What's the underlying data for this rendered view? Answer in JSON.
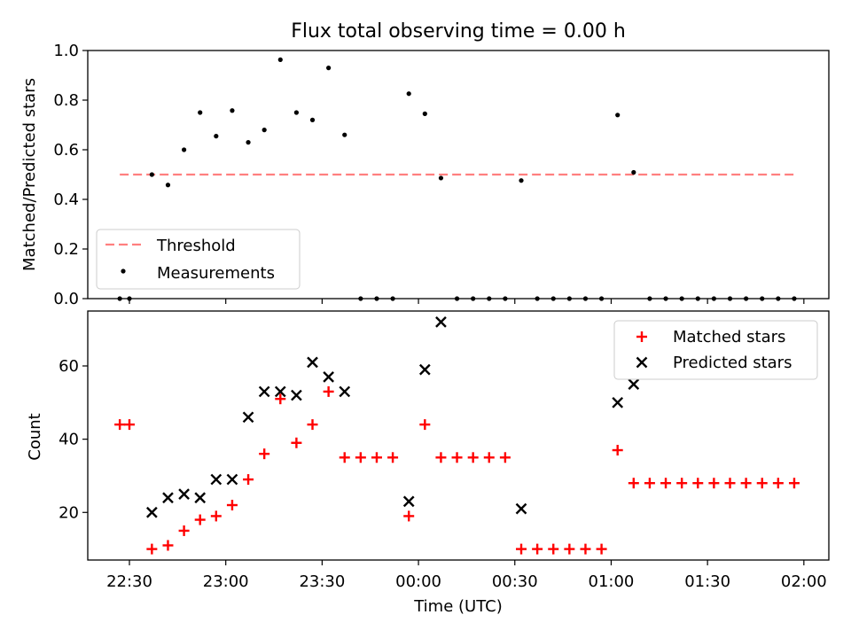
{
  "chart_data": [
    {
      "type": "scatter",
      "title": "Flux total observing time = 0.00 h",
      "xlabel": "",
      "ylabel": "Matched/Predicted stars",
      "ylim": [
        0,
        1.0
      ],
      "yticks": [
        "0.0",
        "0.2",
        "0.4",
        "0.6",
        "0.8",
        "1.0"
      ],
      "x_range": [
        "22:26",
        "02:08"
      ],
      "threshold": {
        "name": "Threshold",
        "value": 0.5,
        "color": "#ff7f7f",
        "x_from": "22:27",
        "x_to": "01:57"
      },
      "legend": {
        "position": "lower left",
        "entries": [
          "Threshold",
          "Measurements"
        ]
      },
      "series": [
        {
          "name": "Measurements",
          "color": "#000000",
          "marker": "dot",
          "points": [
            [
              "22:27",
              0.0
            ],
            [
              "22:30",
              0.0
            ],
            [
              "22:37",
              0.5
            ],
            [
              "22:42",
              0.458
            ],
            [
              "22:47",
              0.6
            ],
            [
              "22:52",
              0.75
            ],
            [
              "22:57",
              0.655
            ],
            [
              "23:02",
              0.758
            ],
            [
              "23:07",
              0.63
            ],
            [
              "23:12",
              0.68
            ],
            [
              "23:17",
              0.963
            ],
            [
              "23:22",
              0.75
            ],
            [
              "23:27",
              0.72
            ],
            [
              "23:32",
              0.93
            ],
            [
              "23:37",
              0.66
            ],
            [
              "23:42",
              0.0
            ],
            [
              "23:47",
              0.0
            ],
            [
              "23:52",
              0.0
            ],
            [
              "23:57",
              0.826
            ],
            [
              "00:02",
              0.745
            ],
            [
              "00:07",
              0.486
            ],
            [
              "00:12",
              0.0
            ],
            [
              "00:17",
              0.0
            ],
            [
              "00:22",
              0.0
            ],
            [
              "00:27",
              0.0
            ],
            [
              "00:32",
              0.476
            ],
            [
              "00:37",
              0.0
            ],
            [
              "00:42",
              0.0
            ],
            [
              "00:47",
              0.0
            ],
            [
              "00:52",
              0.0
            ],
            [
              "00:57",
              0.0
            ],
            [
              "01:02",
              0.74
            ],
            [
              "01:07",
              0.509
            ],
            [
              "01:12",
              0.0
            ],
            [
              "01:17",
              0.0
            ],
            [
              "01:22",
              0.0
            ],
            [
              "01:27",
              0.0
            ],
            [
              "01:32",
              0.0
            ],
            [
              "01:37",
              0.0
            ],
            [
              "01:42",
              0.0
            ],
            [
              "01:47",
              0.0
            ],
            [
              "01:52",
              0.0
            ],
            [
              "01:57",
              0.0
            ]
          ]
        }
      ]
    },
    {
      "type": "scatter",
      "title": "",
      "xlabel": "Time (UTC)",
      "ylabel": "Count",
      "ylim": [
        7,
        75
      ],
      "yticks": [
        "20",
        "40",
        "60"
      ],
      "xticks": [
        "22:30",
        "23:00",
        "23:30",
        "00:00",
        "00:30",
        "01:00",
        "01:30",
        "02:00"
      ],
      "legend": {
        "position": "upper right",
        "entries": [
          "Matched stars",
          "Predicted stars"
        ]
      },
      "series": [
        {
          "name": "Matched stars",
          "color": "#ff0000",
          "marker": "plus",
          "points": [
            [
              "22:27",
              44
            ],
            [
              "22:30",
              44
            ],
            [
              "22:37",
              10
            ],
            [
              "22:42",
              11
            ],
            [
              "22:47",
              15
            ],
            [
              "22:52",
              18
            ],
            [
              "22:57",
              19
            ],
            [
              "23:02",
              22
            ],
            [
              "23:07",
              29
            ],
            [
              "23:12",
              36
            ],
            [
              "23:17",
              51
            ],
            [
              "23:22",
              39
            ],
            [
              "23:27",
              44
            ],
            [
              "23:32",
              53
            ],
            [
              "23:37",
              35
            ],
            [
              "23:42",
              35
            ],
            [
              "23:47",
              35
            ],
            [
              "23:52",
              35
            ],
            [
              "23:57",
              19
            ],
            [
              "00:02",
              44
            ],
            [
              "00:07",
              35
            ],
            [
              "00:12",
              35
            ],
            [
              "00:17",
              35
            ],
            [
              "00:22",
              35
            ],
            [
              "00:27",
              35
            ],
            [
              "00:32",
              10
            ],
            [
              "00:37",
              10
            ],
            [
              "00:42",
              10
            ],
            [
              "00:47",
              10
            ],
            [
              "00:52",
              10
            ],
            [
              "00:57",
              10
            ],
            [
              "01:02",
              37
            ],
            [
              "01:07",
              28
            ],
            [
              "01:12",
              28
            ],
            [
              "01:17",
              28
            ],
            [
              "01:22",
              28
            ],
            [
              "01:27",
              28
            ],
            [
              "01:32",
              28
            ],
            [
              "01:37",
              28
            ],
            [
              "01:42",
              28
            ],
            [
              "01:47",
              28
            ],
            [
              "01:52",
              28
            ],
            [
              "01:57",
              28
            ]
          ]
        },
        {
          "name": "Predicted stars",
          "color": "#000000",
          "marker": "x",
          "points": [
            [
              "22:37",
              20
            ],
            [
              "22:42",
              24
            ],
            [
              "22:47",
              25
            ],
            [
              "22:52",
              24
            ],
            [
              "22:57",
              29
            ],
            [
              "23:02",
              29
            ],
            [
              "23:07",
              46
            ],
            [
              "23:12",
              53
            ],
            [
              "23:17",
              53
            ],
            [
              "23:22",
              52
            ],
            [
              "23:27",
              61
            ],
            [
              "23:32",
              57
            ],
            [
              "23:37",
              53
            ],
            [
              "23:57",
              23
            ],
            [
              "00:02",
              59
            ],
            [
              "00:07",
              72
            ],
            [
              "00:32",
              21
            ],
            [
              "01:02",
              50
            ],
            [
              "01:07",
              55
            ]
          ]
        }
      ]
    }
  ]
}
